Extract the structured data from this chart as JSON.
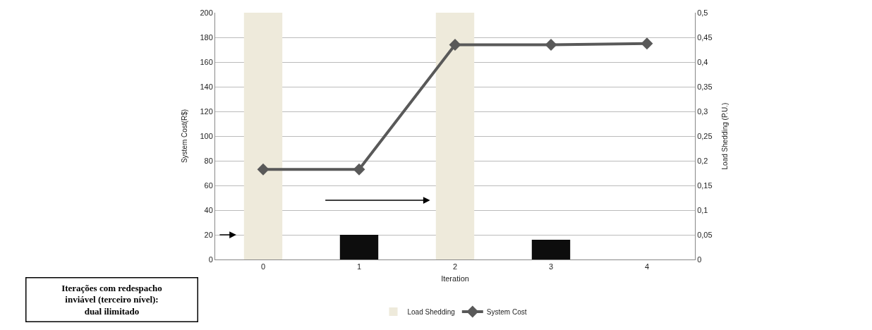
{
  "chart_data": {
    "type": "bar",
    "xlabel": "Iteration",
    "ylabel": "System Cost(R$)",
    "y2label": "Load Shedding (P.U.)",
    "categories": [
      "0",
      "1",
      "2",
      "3",
      "4"
    ],
    "series": [
      {
        "name": "Load Shedding",
        "axis": "y2",
        "color": "#eeeadb",
        "colors": [
          "#eeeadb",
          "#0d0d0d",
          "#eeeadb",
          "#0d0d0d",
          "#0d0d0d"
        ],
        "values": [
          0.5,
          0.05,
          0.5,
          0.04,
          0
        ]
      },
      {
        "name": "System Cost",
        "type": "line",
        "color": "#595959",
        "values": [
          73,
          73,
          174,
          174,
          175
        ]
      }
    ],
    "ylim": [
      0,
      200
    ],
    "yticks": [
      0,
      20,
      40,
      60,
      80,
      100,
      120,
      140,
      160,
      180,
      200
    ],
    "y2lim": [
      0,
      0.5
    ],
    "y2ticks": [
      {
        "value": 0,
        "label": "0"
      },
      {
        "value": 0.05,
        "label": "0,05"
      },
      {
        "value": 0.1,
        "label": "0,1"
      },
      {
        "value": 0.15,
        "label": "0,15"
      },
      {
        "value": 0.2,
        "label": "0,2"
      },
      {
        "value": 0.25,
        "label": "0,25"
      },
      {
        "value": 0.3,
        "label": "0,3"
      },
      {
        "value": 0.35,
        "label": "0,35"
      },
      {
        "value": 0.4,
        "label": "0,4"
      },
      {
        "value": 0.45,
        "label": "0,45"
      },
      {
        "value": 0.5,
        "label": "0,5"
      }
    ],
    "grid": "y",
    "legend": "bottom",
    "marker": "diamond",
    "line_style": "solid",
    "annotations": [
      "Iterações com redespacho inviável (terceiro nível): dual ilimitado"
    ]
  }
}
